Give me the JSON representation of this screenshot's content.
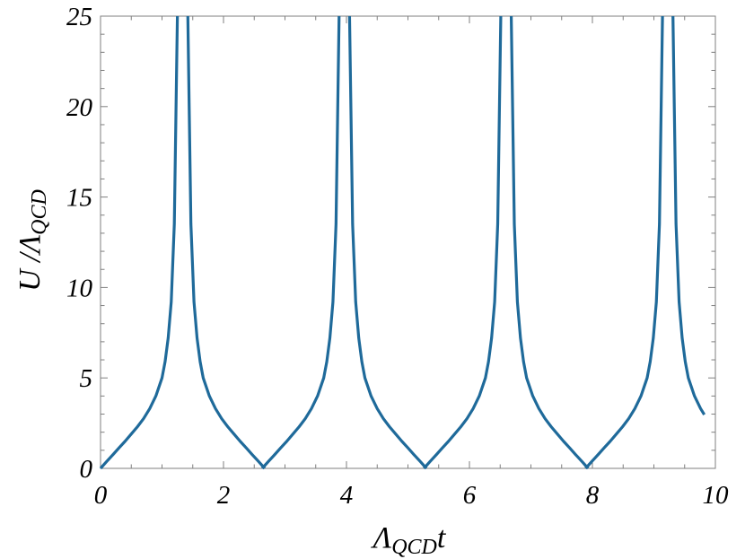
{
  "chart_data": {
    "type": "line",
    "title": "",
    "xlabel": {
      "main": "Λ",
      "sub": "QCD",
      "suffix": "t"
    },
    "ylabel": {
      "main": "U /Λ",
      "sub": "QCD"
    },
    "xlim": [
      0,
      10
    ],
    "ylim": [
      0,
      25
    ],
    "x_ticks": [
      "0",
      "2",
      "4",
      "6",
      "8",
      "10"
    ],
    "y_ticks": [
      "0",
      "5",
      "10",
      "15",
      "20",
      "25"
    ],
    "x_minor_step": 0.5,
    "y_minor_step": 1,
    "grid": false,
    "legend": "none",
    "series": [
      {
        "color": "#1f6a9a",
        "segments": [
          [
            [
              0,
              0
            ],
            [
              0.1,
              0.38
            ],
            [
              0.2,
              0.75
            ],
            [
              0.3,
              1.13
            ],
            [
              0.4,
              1.5
            ],
            [
              0.5,
              1.9
            ],
            [
              0.6,
              2.3
            ],
            [
              0.7,
              2.75
            ],
            [
              0.8,
              3.3
            ],
            [
              0.9,
              4.0
            ],
            [
              1.0,
              5.0
            ],
            [
              1.05,
              5.9
            ],
            [
              1.1,
              7.2
            ],
            [
              1.15,
              9.2
            ],
            [
              1.2,
              13.5
            ],
            [
              1.25,
              25
            ]
          ],
          [
            [
              1.42,
              25
            ],
            [
              1.47,
              13.5
            ],
            [
              1.52,
              9.2
            ],
            [
              1.57,
              7.2
            ],
            [
              1.62,
              5.9
            ],
            [
              1.67,
              5.0
            ],
            [
              1.77,
              4.0
            ],
            [
              1.87,
              3.3
            ],
            [
              1.97,
              2.75
            ],
            [
              2.07,
              2.3
            ],
            [
              2.17,
              1.9
            ],
            [
              2.27,
              1.5
            ],
            [
              2.37,
              1.13
            ],
            [
              2.47,
              0.75
            ],
            [
              2.57,
              0.38
            ],
            [
              2.67,
              0
            ]
          ]
        ]
      }
    ]
  }
}
